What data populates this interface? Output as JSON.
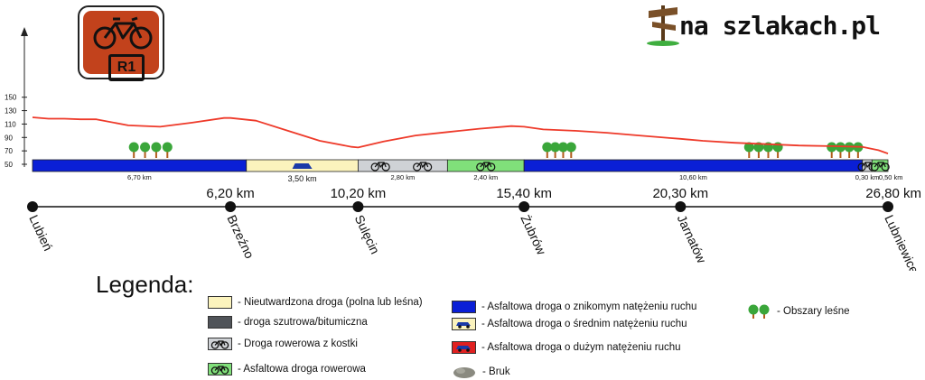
{
  "brand": {
    "name": "na szlakach.pl",
    "badge_label": "R1"
  },
  "y_ticks": [
    "150",
    "130",
    "110",
    "90",
    "70",
    "50"
  ],
  "chart_data": {
    "type": "line",
    "x": [
      0,
      0.5,
      1,
      1.5,
      2,
      3,
      4,
      5,
      6,
      6.2,
      7,
      8,
      9,
      10,
      10.2,
      11,
      12,
      13,
      14,
      15,
      15.4,
      16,
      17,
      18,
      19,
      20,
      20.3,
      21,
      22,
      23,
      24,
      25,
      26,
      26.5,
      26.8
    ],
    "series": [
      {
        "values": [
          120,
          118,
          118,
          117,
          117,
          108,
          106,
          112,
          119,
          119,
          115,
          100,
          85,
          76,
          75,
          84,
          93,
          98,
          103,
          107,
          106,
          102,
          100,
          97,
          93,
          89,
          88,
          85,
          82,
          80,
          78,
          77,
          76,
          71,
          66
        ]
      }
    ],
    "ylim": [
      50,
      150
    ]
  },
  "segments": [
    {
      "type": "asphalt-low",
      "length": "6,70 km",
      "from": 0,
      "to": 6.7,
      "color": "#0a1fd6"
    },
    {
      "type": "unpaved",
      "length": "3,50 km",
      "from": 6.7,
      "to": 10.2,
      "color": "#fbf3bd"
    },
    {
      "type": "bike-cobble",
      "length": "2,80 km",
      "from": 10.2,
      "to": 13.0,
      "color": "#cfd2d6"
    },
    {
      "type": "bike-asphalt",
      "length": "2,40 km",
      "from": 13.0,
      "to": 15.4,
      "color": "#80e07a"
    },
    {
      "type": "asphalt-low",
      "length": "10,60 km",
      "from": 15.4,
      "to": 26.0,
      "color": "#0a1fd6"
    },
    {
      "type": "bike-cobble",
      "length": "0,30 km",
      "from": 26.0,
      "to": 26.3,
      "color": "#cfd2d6"
    },
    {
      "type": "bike-asphalt",
      "length": "0,50 km",
      "from": 26.3,
      "to": 26.8,
      "color": "#80e07a"
    }
  ],
  "distances": [
    {
      "km": 0
    },
    {
      "km": 6.2,
      "label": "6,20 km"
    },
    {
      "km": 10.2,
      "label": "10,20 km"
    },
    {
      "km": 15.4,
      "label": "15,40 km"
    },
    {
      "km": 20.3,
      "label": "20,30 km"
    },
    {
      "km": 26.8,
      "label": "26,80 km"
    }
  ],
  "places": [
    "Lubień",
    "Brzeźno",
    "Sulęcin",
    "Żubrów",
    "Jarnatów",
    "Lubniewice"
  ],
  "forests": [
    {
      "from": 3,
      "to": 4.4
    },
    {
      "from": 16,
      "to": 17
    },
    {
      "from": 22.3,
      "to": 23.5
    },
    {
      "from": 24.9,
      "to": 26
    }
  ],
  "legend": {
    "title": "Legenda:",
    "items": [
      {
        "label": "- Nieutwardzona droga (polna lub leśna)",
        "swatch": "unpaved",
        "color": "#fbf3bd"
      },
      {
        "label": "-  droga szutrowa/bitumiczna",
        "swatch": "gravel",
        "color": "#505459"
      },
      {
        "label": "- Droga rowerowa z kostki",
        "swatch": "bike-cobble",
        "color": "#cfd2d6"
      },
      {
        "label": "- Asfaltowa droga rowerowa",
        "swatch": "bike-asphalt",
        "color": "#80e07a"
      },
      {
        "label": "- Asfaltowa droga o znikomym natężeniu ruchu",
        "swatch": "asphalt-low",
        "color": "#0a1fd6"
      },
      {
        "label": "- Asfaltowa droga o średnim natężeniu ruchu",
        "swatch": "asphalt-mid",
        "color": "#fbf3bd"
      },
      {
        "label": "- Asfaltowa droga o dużym natężeniu ruchu",
        "swatch": "asphalt-high",
        "color": "#e02020"
      },
      {
        "label": "-    Bruk",
        "swatch": "cobble",
        "color": "#8a8a80"
      },
      {
        "label": "- Obszary leśne",
        "swatch": "forest",
        "color": "#3aa63a"
      }
    ]
  }
}
